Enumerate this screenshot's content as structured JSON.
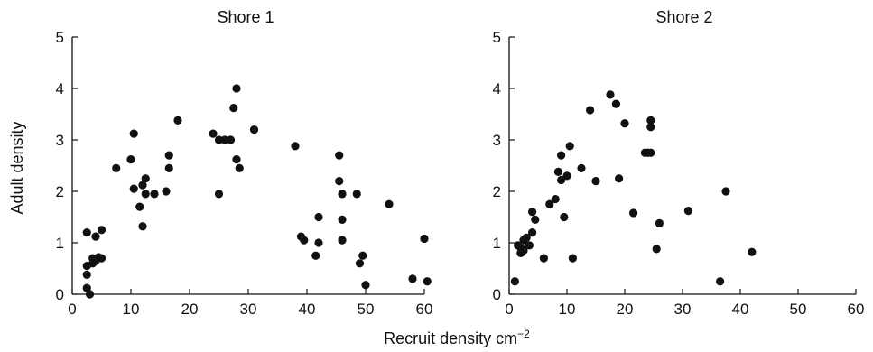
{
  "figure": {
    "xlabel": "Recruit density cm",
    "xlabel_superscript": "−2",
    "ylabel": "Adult density"
  },
  "chart_data": [
    {
      "type": "scatter",
      "title": "Shore 1",
      "xlim": [
        0,
        60
      ],
      "ylim": [
        0,
        5
      ],
      "xticks": [
        0,
        10,
        20,
        30,
        40,
        50,
        60
      ],
      "yticks": [
        0,
        1,
        2,
        3,
        4,
        5
      ],
      "marker_color": "#111111",
      "points": [
        [
          2.5,
          1.2
        ],
        [
          2.5,
          0.55
        ],
        [
          2.5,
          0.38
        ],
        [
          2.5,
          0.12
        ],
        [
          3.0,
          0.0
        ],
        [
          3.5,
          0.6
        ],
        [
          3.5,
          0.7
        ],
        [
          4.0,
          0.65
        ],
        [
          4.0,
          1.12
        ],
        [
          4.5,
          0.72
        ],
        [
          5.0,
          1.25
        ],
        [
          5.0,
          0.7
        ],
        [
          7.5,
          2.45
        ],
        [
          10.0,
          2.62
        ],
        [
          10.5,
          3.12
        ],
        [
          10.5,
          2.05
        ],
        [
          11.5,
          1.7
        ],
        [
          12.0,
          2.12
        ],
        [
          12.0,
          1.32
        ],
        [
          12.5,
          2.25
        ],
        [
          12.5,
          1.95
        ],
        [
          14.0,
          1.95
        ],
        [
          16.0,
          2.0
        ],
        [
          16.5,
          2.7
        ],
        [
          16.5,
          2.45
        ],
        [
          18.0,
          3.38
        ],
        [
          24.0,
          3.12
        ],
        [
          25.0,
          3.0
        ],
        [
          25.0,
          1.95
        ],
        [
          26.0,
          3.0
        ],
        [
          27.0,
          3.0
        ],
        [
          27.5,
          3.62
        ],
        [
          28.0,
          4.0
        ],
        [
          28.0,
          2.62
        ],
        [
          28.5,
          2.45
        ],
        [
          31.0,
          3.2
        ],
        [
          38.0,
          2.88
        ],
        [
          39.0,
          1.12
        ],
        [
          39.5,
          1.05
        ],
        [
          41.5,
          0.75
        ],
        [
          42.0,
          1.0
        ],
        [
          42.0,
          1.5
        ],
        [
          45.5,
          2.7
        ],
        [
          45.5,
          2.2
        ],
        [
          46.0,
          1.05
        ],
        [
          46.0,
          1.45
        ],
        [
          46.0,
          1.95
        ],
        [
          48.5,
          1.95
        ],
        [
          49.0,
          0.6
        ],
        [
          49.5,
          0.75
        ],
        [
          50.0,
          0.18
        ],
        [
          54.0,
          1.75
        ],
        [
          58.0,
          0.3
        ],
        [
          60.0,
          1.08
        ],
        [
          60.5,
          0.25
        ]
      ]
    },
    {
      "type": "scatter",
      "title": "Shore 2",
      "xlim": [
        0,
        60
      ],
      "ylim": [
        0,
        5
      ],
      "xticks": [
        0,
        10,
        20,
        30,
        40,
        50,
        60
      ],
      "yticks": [
        0,
        1,
        2,
        3,
        4,
        5
      ],
      "marker_color": "#111111",
      "points": [
        [
          1.0,
          0.25
        ],
        [
          1.5,
          0.95
        ],
        [
          2.0,
          0.8
        ],
        [
          2.0,
          0.9
        ],
        [
          2.5,
          0.85
        ],
        [
          2.5,
          1.05
        ],
        [
          3.0,
          1.1
        ],
        [
          3.5,
          0.95
        ],
        [
          4.0,
          1.2
        ],
        [
          4.0,
          1.6
        ],
        [
          4.5,
          1.45
        ],
        [
          6.0,
          0.7
        ],
        [
          7.0,
          1.75
        ],
        [
          8.0,
          1.85
        ],
        [
          8.5,
          2.38
        ],
        [
          9.0,
          2.7
        ],
        [
          9.0,
          2.22
        ],
        [
          9.5,
          1.5
        ],
        [
          10.0,
          2.3
        ],
        [
          10.5,
          2.88
        ],
        [
          11.0,
          0.7
        ],
        [
          12.5,
          2.45
        ],
        [
          14.0,
          3.58
        ],
        [
          15.0,
          2.2
        ],
        [
          17.5,
          3.88
        ],
        [
          18.5,
          3.7
        ],
        [
          19.0,
          2.25
        ],
        [
          20.0,
          3.32
        ],
        [
          21.5,
          1.58
        ],
        [
          23.5,
          2.75
        ],
        [
          24.0,
          2.75
        ],
        [
          24.5,
          2.75
        ],
        [
          24.5,
          3.38
        ],
        [
          24.5,
          3.25
        ],
        [
          25.5,
          0.88
        ],
        [
          26.0,
          1.38
        ],
        [
          31.0,
          1.62
        ],
        [
          36.5,
          0.25
        ],
        [
          37.5,
          2.0
        ],
        [
          42.0,
          0.82
        ]
      ]
    }
  ]
}
